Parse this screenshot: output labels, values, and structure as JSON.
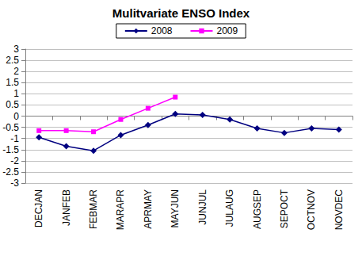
{
  "chart_data": {
    "type": "line",
    "title": "Mulitvariate ENSO Index",
    "categories": [
      "DECJAN",
      "JANFEB",
      "FEBMAR",
      "MARAPR",
      "APRMAY",
      "MAYJUN",
      "JUNJUL",
      "JULAUG",
      "AUGSEP",
      "SEPOCT",
      "OCTNOV",
      "NOVDEC"
    ],
    "series": [
      {
        "name": "2008",
        "color": "#000080",
        "marker": "diamond",
        "values": [
          -0.95,
          -1.35,
          -1.55,
          -0.85,
          -0.4,
          0.1,
          0.05,
          -0.15,
          -0.55,
          -0.75,
          -0.55,
          -0.6
        ]
      },
      {
        "name": "2009",
        "color": "#ff00ff",
        "marker": "square",
        "values": [
          -0.65,
          -0.65,
          -0.7,
          -0.15,
          0.35,
          0.85,
          null,
          null,
          null,
          null,
          null,
          null
        ]
      }
    ],
    "ylim": [
      -3,
      3
    ],
    "yticks": [
      -3,
      -2.5,
      -2,
      -1.5,
      -1,
      -0.5,
      0,
      0.5,
      1,
      1.5,
      2,
      2.5,
      3
    ],
    "grid": true,
    "legend": "top"
  }
}
